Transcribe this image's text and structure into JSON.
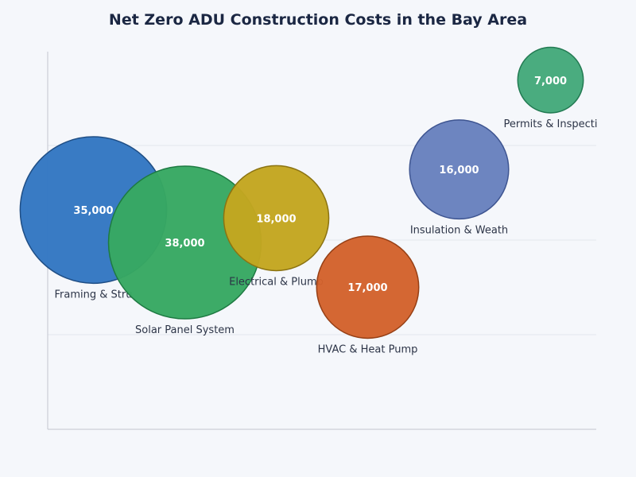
{
  "chart_data": {
    "type": "scatter",
    "title": "Net Zero ADU Construction Costs in the Bay Area",
    "xlabel": "",
    "ylabel": "",
    "grid": true,
    "legend": "none",
    "points": [
      {
        "label": "Framing & Stru",
        "value": 35000,
        "value_label": "35,000",
        "x": 1,
        "y": 2.7,
        "color": "#3377c2",
        "stroke": "#1f4e85"
      },
      {
        "label": "Solar Panel System",
        "value": 38000,
        "value_label": "38,000",
        "x": 2,
        "y": 2.3,
        "color": "#37a862",
        "stroke": "#1e7a42"
      },
      {
        "label": "Electrical & Plumb",
        "value": 18000,
        "value_label": "18,000",
        "x": 3,
        "y": 2.6,
        "color": "#c3a620",
        "stroke": "#8b7312"
      },
      {
        "label": "HVAC & Heat Pump",
        "value": 17000,
        "value_label": "17,000",
        "x": 4,
        "y": 1.75,
        "color": "#d3622c",
        "stroke": "#963f15"
      },
      {
        "label": "Insulation & Weath",
        "value": 16000,
        "value_label": "16,000",
        "x": 5,
        "y": 3.2,
        "color": "#6881be",
        "stroke": "#3e5591"
      },
      {
        "label": "Permits & Inspecti",
        "value": 7000,
        "value_label": "7,000",
        "x": 6,
        "y": 4.3,
        "color": "#44a97b",
        "stroke": "#227a52"
      }
    ]
  }
}
